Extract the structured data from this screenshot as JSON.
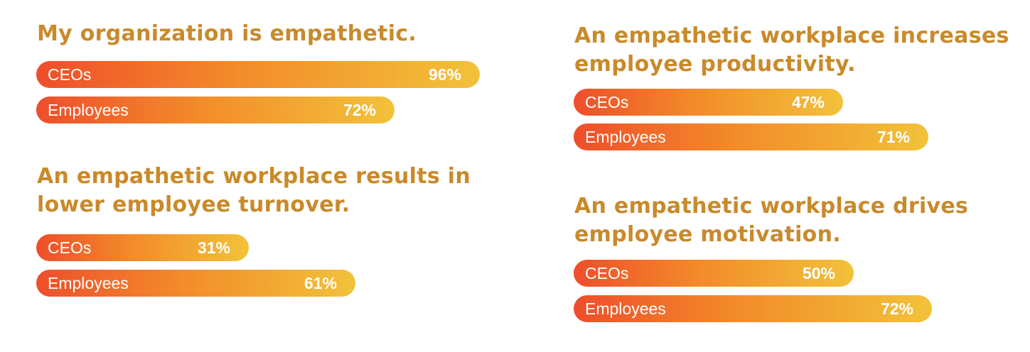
{
  "chart_data": [
    {
      "type": "bar",
      "title": "My organization is empathetic.",
      "categories": [
        "CEOs",
        "Employees"
      ],
      "values": [
        96,
        72
      ],
      "value_labels": [
        "96%",
        "72%"
      ],
      "unit": "%",
      "xlim": [
        0,
        100
      ]
    },
    {
      "type": "bar",
      "title": "An empathetic workplace increases\nemployee productivity.",
      "categories": [
        "CEOs",
        "Employees"
      ],
      "values": [
        47,
        71
      ],
      "value_labels": [
        "47%",
        "71%"
      ],
      "unit": "%",
      "xlim": [
        0,
        100
      ]
    },
    {
      "type": "bar",
      "title": "An empathetic workplace results in\nlower employee turnover.",
      "categories": [
        "CEOs",
        "Employees"
      ],
      "values": [
        31,
        61
      ],
      "value_labels": [
        "31%",
        "61%"
      ],
      "unit": "%",
      "xlim": [
        0,
        100
      ]
    },
    {
      "type": "bar",
      "title": "An empathetic workplace drives\nemployee motivation.",
      "categories": [
        "CEOs",
        "Employees"
      ],
      "values": [
        50,
        72
      ],
      "value_labels": [
        "50%",
        "72%"
      ],
      "unit": "%",
      "xlim": [
        0,
        100
      ]
    }
  ],
  "colors": {
    "title": "#c98a2a",
    "bar_start": "#ee4e2b",
    "bar_end": "#f2c23a",
    "bar_text": "#ffffff"
  }
}
